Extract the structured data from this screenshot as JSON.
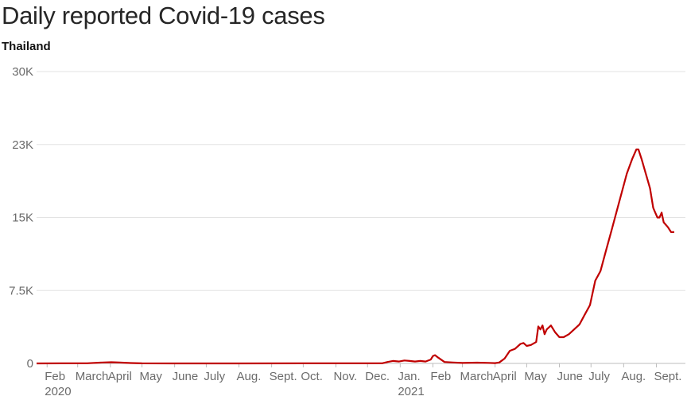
{
  "chart_data": {
    "type": "line",
    "title": "Daily reported Covid-19 cases",
    "subtitle": "Thailand",
    "xlabel": "",
    "ylabel": "",
    "ylim": [
      0,
      30000
    ],
    "grid": true,
    "y_ticks": [
      {
        "value": 0,
        "label": "0"
      },
      {
        "value": 7500,
        "label": "7.5K"
      },
      {
        "value": 15000,
        "label": "15K"
      },
      {
        "value": 22500,
        "label": "23K"
      },
      {
        "value": 30000,
        "label": "30K"
      }
    ],
    "x_ticks": [
      {
        "date": "2020-02-01",
        "label": "Feb"
      },
      {
        "date": "2020-03-01",
        "label": "March"
      },
      {
        "date": "2020-04-01",
        "label": "April"
      },
      {
        "date": "2020-05-01",
        "label": "May"
      },
      {
        "date": "2020-06-01",
        "label": "June"
      },
      {
        "date": "2020-07-01",
        "label": "July"
      },
      {
        "date": "2020-08-01",
        "label": "Aug."
      },
      {
        "date": "2020-09-01",
        "label": "Sept."
      },
      {
        "date": "2020-10-01",
        "label": "Oct."
      },
      {
        "date": "2020-11-01",
        "label": "Nov."
      },
      {
        "date": "2020-12-01",
        "label": "Dec."
      },
      {
        "date": "2021-01-01",
        "label": "Jan."
      },
      {
        "date": "2021-02-01",
        "label": "Feb"
      },
      {
        "date": "2021-03-01",
        "label": "March"
      },
      {
        "date": "2021-04-01",
        "label": "April"
      },
      {
        "date": "2021-05-01",
        "label": "May"
      },
      {
        "date": "2021-06-01",
        "label": "June"
      },
      {
        "date": "2021-07-01",
        "label": "July"
      },
      {
        "date": "2021-08-01",
        "label": "Aug."
      },
      {
        "date": "2021-09-01",
        "label": "Sept."
      }
    ],
    "year_labels": [
      {
        "date": "2020-02-01",
        "label": "2020"
      },
      {
        "date": "2021-01-01",
        "label": "2021"
      }
    ],
    "series": [
      {
        "color": "#c00000",
        "points": [
          [
            "2020-01-22",
            0
          ],
          [
            "2020-02-15",
            10
          ],
          [
            "2020-03-10",
            20
          ],
          [
            "2020-03-25",
            100
          ],
          [
            "2020-04-02",
            120
          ],
          [
            "2020-04-10",
            90
          ],
          [
            "2020-04-20",
            40
          ],
          [
            "2020-05-01",
            10
          ],
          [
            "2020-06-01",
            3
          ],
          [
            "2020-08-01",
            3
          ],
          [
            "2020-10-01",
            5
          ],
          [
            "2020-12-01",
            10
          ],
          [
            "2020-12-15",
            20
          ],
          [
            "2020-12-20",
            150
          ],
          [
            "2020-12-25",
            250
          ],
          [
            "2020-12-31",
            200
          ],
          [
            "2021-01-05",
            300
          ],
          [
            "2021-01-10",
            250
          ],
          [
            "2021-01-15",
            200
          ],
          [
            "2021-01-20",
            250
          ],
          [
            "2021-01-25",
            200
          ],
          [
            "2021-01-30",
            400
          ],
          [
            "2021-02-01",
            750
          ],
          [
            "2021-02-03",
            850
          ],
          [
            "2021-02-06",
            600
          ],
          [
            "2021-02-12",
            150
          ],
          [
            "2021-02-20",
            100
          ],
          [
            "2021-03-01",
            50
          ],
          [
            "2021-03-15",
            80
          ],
          [
            "2021-03-25",
            60
          ],
          [
            "2021-04-01",
            30
          ],
          [
            "2021-04-05",
            100
          ],
          [
            "2021-04-10",
            500
          ],
          [
            "2021-04-15",
            1300
          ],
          [
            "2021-04-20",
            1500
          ],
          [
            "2021-04-25",
            2000
          ],
          [
            "2021-04-28",
            2100
          ],
          [
            "2021-05-01",
            1800
          ],
          [
            "2021-05-05",
            1900
          ],
          [
            "2021-05-10",
            2200
          ],
          [
            "2021-05-12",
            3800
          ],
          [
            "2021-05-14",
            3500
          ],
          [
            "2021-05-16",
            3900
          ],
          [
            "2021-05-18",
            3000
          ],
          [
            "2021-05-20",
            3500
          ],
          [
            "2021-05-24",
            3900
          ],
          [
            "2021-05-28",
            3200
          ],
          [
            "2021-06-01",
            2700
          ],
          [
            "2021-06-05",
            2700
          ],
          [
            "2021-06-10",
            3000
          ],
          [
            "2021-06-15",
            3500
          ],
          [
            "2021-06-20",
            4000
          ],
          [
            "2021-06-25",
            5000
          ],
          [
            "2021-06-30",
            6000
          ],
          [
            "2021-07-05",
            8500
          ],
          [
            "2021-07-10",
            9500
          ],
          [
            "2021-07-15",
            11500
          ],
          [
            "2021-07-20",
            13500
          ],
          [
            "2021-07-25",
            15500
          ],
          [
            "2021-07-30",
            17500
          ],
          [
            "2021-08-04",
            19500
          ],
          [
            "2021-08-09",
            21000
          ],
          [
            "2021-08-13",
            22000
          ],
          [
            "2021-08-15",
            22000
          ],
          [
            "2021-08-18",
            21000
          ],
          [
            "2021-08-22",
            19500
          ],
          [
            "2021-08-26",
            18000
          ],
          [
            "2021-08-29",
            16000
          ],
          [
            "2021-08-31",
            15500
          ],
          [
            "2021-09-02",
            15000
          ],
          [
            "2021-09-04",
            15000
          ],
          [
            "2021-09-06",
            15500
          ],
          [
            "2021-09-08",
            14500
          ],
          [
            "2021-09-12",
            14000
          ],
          [
            "2021-09-15",
            13500
          ],
          [
            "2021-09-18",
            13500
          ]
        ]
      }
    ]
  }
}
